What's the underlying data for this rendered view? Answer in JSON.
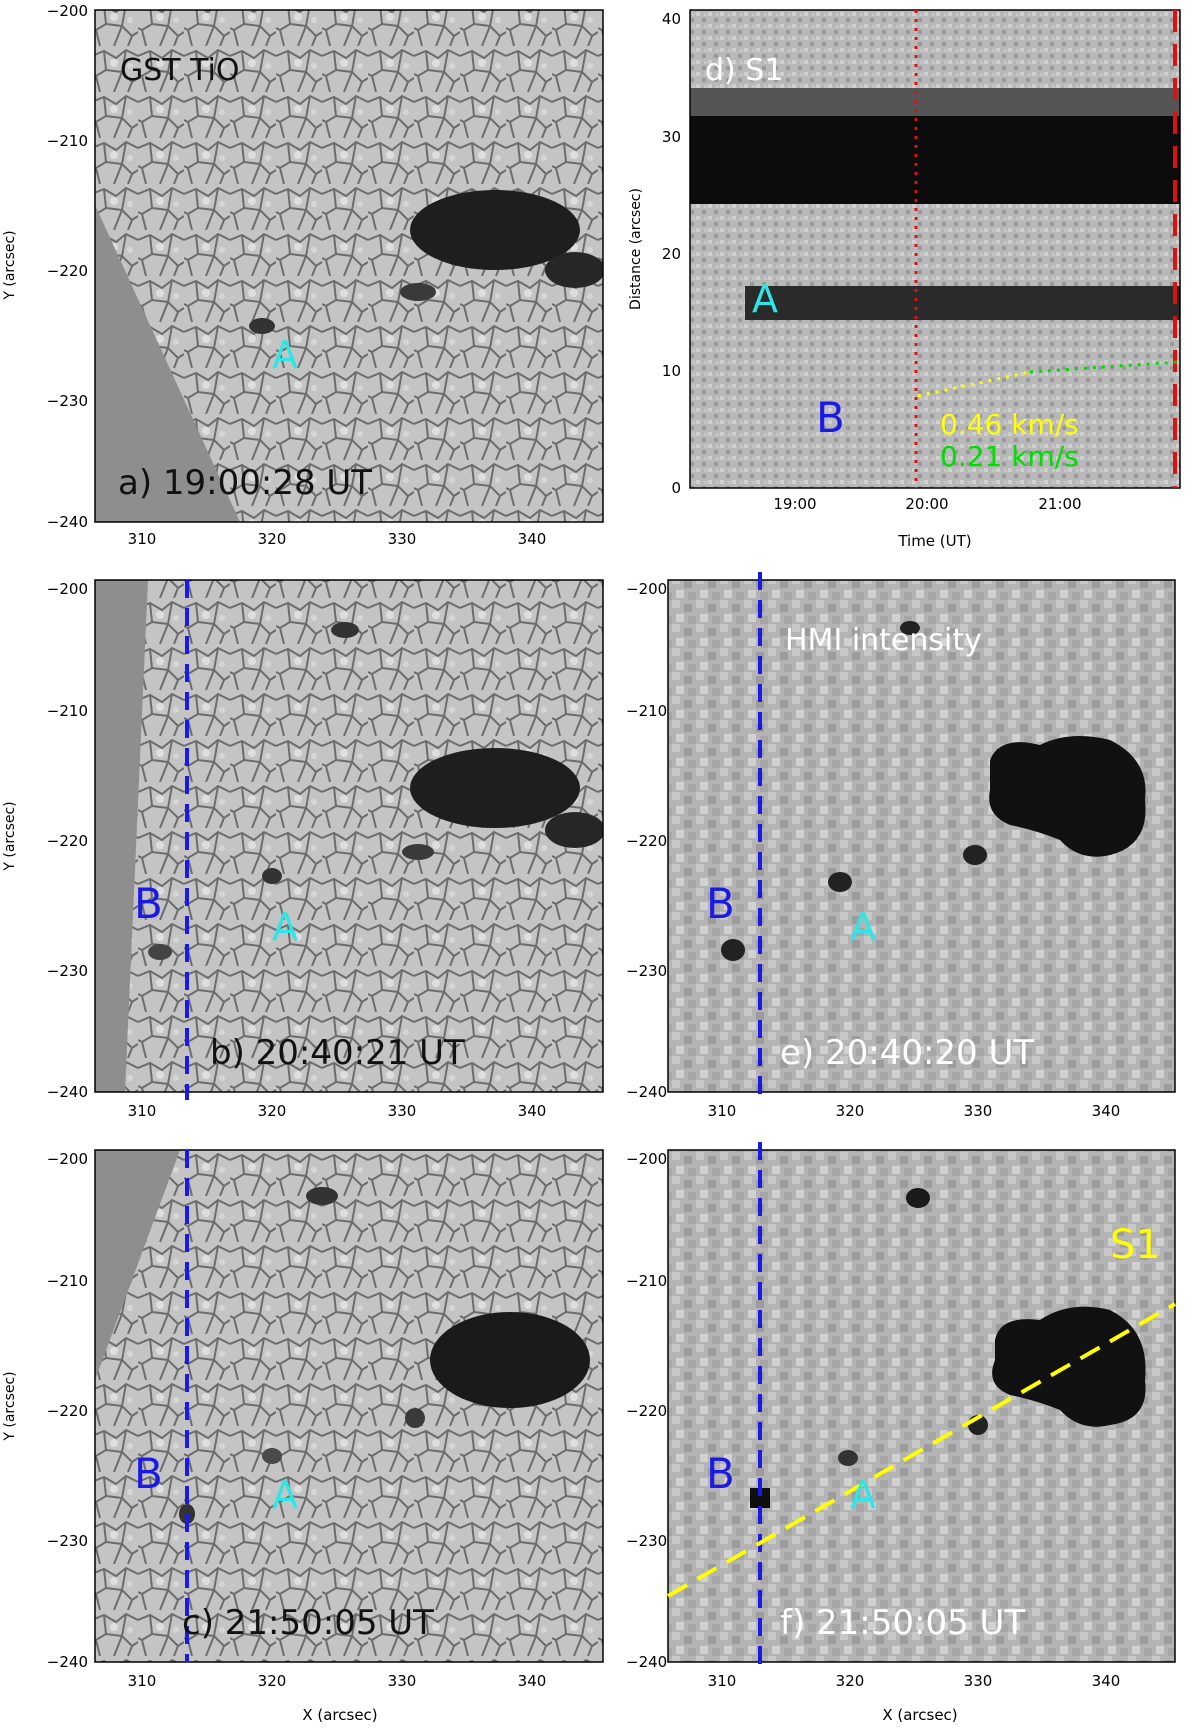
{
  "figure": {
    "panels": [
      {
        "id": "a",
        "caption": "a) 19:00:28 UT",
        "title": "GST TiO",
        "labels": [
          "A"
        ],
        "x_axis": {
          "ticks": [
            "310",
            "320",
            "330",
            "340"
          ],
          "label": ""
        },
        "y_axis": {
          "ticks": [
            "−200",
            "−210",
            "−220",
            "−230",
            "−240"
          ],
          "label": "Y (arcsec)"
        }
      },
      {
        "id": "d",
        "title": "d) S1",
        "labels": [
          "A",
          "B"
        ],
        "speeds": [
          "0.46 km/s",
          "0.21 km/s"
        ],
        "x_axis": {
          "ticks": [
            "19:00",
            "20:00",
            "21:00"
          ],
          "label": "Time (UT)"
        },
        "y_axis": {
          "ticks": [
            "0",
            "10",
            "20",
            "30",
            "40"
          ],
          "label": "Distance (arcsec)"
        }
      },
      {
        "id": "b",
        "caption": "b) 20:40:21 UT",
        "labels": [
          "A",
          "B"
        ],
        "x_axis": {
          "ticks": [
            "310",
            "320",
            "330",
            "340"
          ],
          "label": ""
        },
        "y_axis": {
          "ticks": [
            "−200",
            "−210",
            "−220",
            "−230",
            "−240"
          ],
          "label": "Y (arcsec)"
        }
      },
      {
        "id": "e",
        "caption": "e) 20:40:20 UT",
        "title": "HMI intensity",
        "labels": [
          "A",
          "B"
        ],
        "x_axis": {
          "ticks": [
            "310",
            "320",
            "330",
            "340"
          ],
          "label": ""
        },
        "y_axis": {
          "ticks": [
            "−200",
            "−210",
            "−220",
            "−230",
            "−240"
          ],
          "label": ""
        }
      },
      {
        "id": "c",
        "caption": "c) 21:50:05 UT",
        "labels": [
          "A",
          "B"
        ],
        "x_axis": {
          "ticks": [
            "310",
            "320",
            "330",
            "340"
          ],
          "label": "X (arcsec)"
        },
        "y_axis": {
          "ticks": [
            "−200",
            "−210",
            "−220",
            "−230",
            "−240"
          ],
          "label": "Y (arcsec)"
        }
      },
      {
        "id": "f",
        "caption": "f) 21:50:05 UT",
        "slit_label": "S1",
        "labels": [
          "A",
          "B"
        ],
        "x_axis": {
          "ticks": [
            "310",
            "320",
            "330",
            "340"
          ],
          "label": "X (arcsec)"
        },
        "y_axis": {
          "ticks": [
            "−200",
            "−210",
            "−220",
            "−230",
            "−240"
          ],
          "label": ""
        }
      }
    ]
  },
  "colors": {
    "feature_a": "#2ee6e6",
    "feature_b": "#1a1ae6",
    "slit": "#ffff00",
    "speed_fast": "#ffff00",
    "speed_slow": "#00dd00",
    "marker_red": "#dd1111",
    "guide_blue": "#1a1ae6"
  }
}
